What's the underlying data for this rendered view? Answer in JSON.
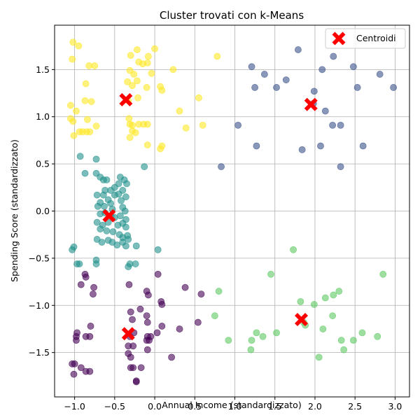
{
  "chart_data": {
    "type": "scatter",
    "title": "Cluster trovati con k-Means",
    "xlabel": "Annual Income (standardizzato)",
    "ylabel": "Spending Score (standardizzato)",
    "xlim": [
      -1.25,
      3.18
    ],
    "ylim": [
      -1.97,
      1.97
    ],
    "xticks": [
      -1.0,
      -0.5,
      0.0,
      0.5,
      1.0,
      1.5,
      2.0,
      2.5,
      3.0
    ],
    "yticks": [
      -1.5,
      -1.0,
      -0.5,
      0.0,
      0.5,
      1.0,
      1.5
    ],
    "xtick_labels": [
      "−1.0",
      "−0.5",
      "0.0",
      "0.5",
      "1.0",
      "1.5",
      "2.0",
      "2.5",
      "3.0"
    ],
    "ytick_labels": [
      "−1.5",
      "−1.0",
      "−0.5",
      "0.0",
      "0.5",
      "1.0",
      "1.5"
    ],
    "grid": true,
    "legend": {
      "position": "top-right",
      "label": "Centroidi"
    },
    "point_alpha": 0.6,
    "series": [
      {
        "color": "#fde725",
        "points": [
          [
            -1.02,
            1.79
          ],
          [
            -0.95,
            1.75
          ],
          [
            -1.03,
            1.61
          ],
          [
            -0.82,
            1.54
          ],
          [
            -0.75,
            1.54
          ],
          [
            -0.86,
            1.35
          ],
          [
            -0.79,
            1.16
          ],
          [
            -0.87,
            1.17
          ],
          [
            -1.05,
            1.12
          ],
          [
            -0.98,
            1.06
          ],
          [
            -1.05,
            0.98
          ],
          [
            -1.02,
            0.95
          ],
          [
            -0.84,
            0.97
          ],
          [
            -0.73,
            0.9
          ],
          [
            -0.9,
            0.84
          ],
          [
            -0.94,
            0.84
          ],
          [
            -0.85,
            0.84
          ],
          [
            -0.81,
            0.84
          ],
          [
            -1.01,
            0.8
          ],
          [
            -0.3,
            1.65
          ],
          [
            -0.22,
            1.71
          ],
          [
            -0.2,
            1.58
          ],
          [
            -0.08,
            1.64
          ],
          [
            -0.15,
            1.56
          ],
          [
            0.0,
            1.72
          ],
          [
            -0.09,
            1.57
          ],
          [
            -0.31,
            1.49
          ],
          [
            -0.26,
            1.45
          ],
          [
            -0.04,
            1.46
          ],
          [
            -0.34,
            1.37
          ],
          [
            -0.28,
            1.33
          ],
          [
            -0.22,
            1.38
          ],
          [
            -0.1,
            1.31
          ],
          [
            0.07,
            1.32
          ],
          [
            0.09,
            1.28
          ],
          [
            -0.21,
            1.2
          ],
          [
            -0.33,
            1.17
          ],
          [
            0.23,
            1.5
          ],
          [
            0.55,
            1.2
          ],
          [
            0.78,
            1.64
          ],
          [
            -0.32,
            0.98
          ],
          [
            -0.28,
            0.91
          ],
          [
            -0.31,
            0.92
          ],
          [
            -0.2,
            0.92
          ],
          [
            -0.14,
            0.92
          ],
          [
            -0.28,
            0.85
          ],
          [
            -0.31,
            0.78
          ],
          [
            -0.24,
            0.83
          ],
          [
            0.31,
            1.06
          ],
          [
            0.39,
            0.88
          ],
          [
            0.6,
            0.91
          ],
          [
            -0.09,
            0.7
          ],
          [
            0.07,
            0.66
          ],
          [
            0.09,
            0.69
          ],
          [
            -0.09,
            0.92
          ]
        ]
      },
      {
        "color": "#3b528b",
        "points": [
          [
            1.21,
            1.53
          ],
          [
            1.37,
            1.45
          ],
          [
            1.52,
            1.31
          ],
          [
            1.25,
            1.31
          ],
          [
            1.64,
            1.39
          ],
          [
            1.79,
            1.71
          ],
          [
            1.99,
            1.27
          ],
          [
            2.09,
            1.5
          ],
          [
            2.23,
            1.64
          ],
          [
            2.48,
            1.53
          ],
          [
            2.53,
            1.31
          ],
          [
            2.81,
            1.45
          ],
          [
            2.98,
            1.31
          ],
          [
            2.13,
            1.06
          ],
          [
            2.22,
            0.91
          ],
          [
            2.32,
            0.91
          ],
          [
            1.04,
            0.91
          ],
          [
            1.27,
            0.69
          ],
          [
            1.84,
            0.65
          ],
          [
            2.07,
            0.69
          ],
          [
            2.32,
            0.47
          ],
          [
            2.6,
            0.69
          ],
          [
            0.83,
            0.47
          ],
          [
            1.98,
            1.14
          ]
        ]
      },
      {
        "color": "#21918c",
        "points": [
          [
            -0.93,
            0.58
          ],
          [
            -0.73,
            0.55
          ],
          [
            -0.87,
            0.4
          ],
          [
            -0.73,
            0.4
          ],
          [
            -0.68,
            0.36
          ],
          [
            -0.64,
            0.33
          ],
          [
            -0.6,
            0.33
          ],
          [
            -0.43,
            0.36
          ],
          [
            -0.45,
            0.29
          ],
          [
            -0.38,
            0.33
          ],
          [
            -0.35,
            0.29
          ],
          [
            -0.13,
            0.47
          ],
          [
            -0.5,
            0.25
          ],
          [
            -0.55,
            0.22
          ],
          [
            -0.62,
            0.22
          ],
          [
            -0.64,
            0.17
          ],
          [
            -0.72,
            0.17
          ],
          [
            -0.68,
            0.09
          ],
          [
            -0.58,
            0.12
          ],
          [
            -0.5,
            0.17
          ],
          [
            -0.45,
            0.18
          ],
          [
            -0.4,
            0.22
          ],
          [
            -0.36,
            0.15
          ],
          [
            -0.42,
            0.11
          ],
          [
            -0.55,
            0.08
          ],
          [
            -0.63,
            0.05
          ],
          [
            -0.71,
            0.05
          ],
          [
            -0.53,
            0.02
          ],
          [
            -0.4,
            0.04
          ],
          [
            -0.37,
            0.0
          ],
          [
            -0.68,
            -0.03
          ],
          [
            -0.62,
            -0.02
          ],
          [
            -0.55,
            -0.05
          ],
          [
            -0.5,
            -0.07
          ],
          [
            -0.43,
            -0.05
          ],
          [
            -0.36,
            -0.09
          ],
          [
            -0.72,
            -0.12
          ],
          [
            -0.65,
            -0.15
          ],
          [
            -0.58,
            -0.12
          ],
          [
            -0.46,
            -0.15
          ],
          [
            -0.4,
            -0.13
          ],
          [
            -0.36,
            -0.17
          ],
          [
            -0.68,
            -0.19
          ],
          [
            -0.6,
            -0.21
          ],
          [
            -0.52,
            -0.22
          ],
          [
            -0.44,
            -0.25
          ],
          [
            -0.4,
            -0.28
          ],
          [
            -0.34,
            -0.26
          ],
          [
            -0.72,
            -0.3
          ],
          [
            -0.66,
            -0.33
          ],
          [
            -0.58,
            -0.31
          ],
          [
            -0.53,
            -0.33
          ],
          [
            -0.47,
            -0.36
          ],
          [
            -0.4,
            -0.33
          ],
          [
            -0.33,
            -0.3
          ],
          [
            -0.36,
            -0.37
          ],
          [
            -0.23,
            -0.37
          ],
          [
            -1.03,
            -0.41
          ],
          [
            -1.01,
            -0.38
          ],
          [
            -0.73,
            -0.52
          ],
          [
            -0.94,
            -0.56
          ],
          [
            -0.97,
            -0.56
          ],
          [
            -0.73,
            -0.56
          ],
          [
            -0.31,
            -0.56
          ],
          [
            -0.24,
            -0.56
          ],
          [
            -0.33,
            -0.59
          ],
          [
            0.04,
            -0.41
          ]
        ]
      },
      {
        "color": "#5ec962",
        "points": [
          [
            1.73,
            -0.41
          ],
          [
            1.45,
            -0.67
          ],
          [
            2.85,
            -0.67
          ],
          [
            0.8,
            -0.85
          ],
          [
            2.23,
            -0.89
          ],
          [
            2.3,
            -0.85
          ],
          [
            1.82,
            -0.96
          ],
          [
            1.99,
            -0.99
          ],
          [
            2.13,
            -0.92
          ],
          [
            0.75,
            -1.11
          ],
          [
            1.86,
            -1.18
          ],
          [
            1.88,
            -1.21
          ],
          [
            2.22,
            -1.11
          ],
          [
            1.27,
            -1.29
          ],
          [
            1.35,
            -1.33
          ],
          [
            1.52,
            -1.29
          ],
          [
            2.1,
            -1.25
          ],
          [
            2.33,
            -1.37
          ],
          [
            2.48,
            -1.37
          ],
          [
            2.59,
            -1.29
          ],
          [
            2.78,
            -1.33
          ],
          [
            0.92,
            -1.37
          ],
          [
            1.21,
            -1.37
          ],
          [
            1.2,
            -1.47
          ],
          [
            2.05,
            -1.55
          ],
          [
            2.36,
            -1.47
          ]
        ]
      },
      {
        "color": "#440154",
        "points": [
          [
            -0.92,
            -0.78
          ],
          [
            -0.87,
            -0.67
          ],
          [
            -0.86,
            -0.7
          ],
          [
            -0.76,
            -0.81
          ],
          [
            -0.77,
            -0.88
          ],
          [
            -0.32,
            -0.78
          ],
          [
            -0.08,
            -0.89
          ],
          [
            -0.1,
            -0.85
          ],
          [
            0.04,
            -0.67
          ],
          [
            0.08,
            -0.96
          ],
          [
            0.09,
            -0.99
          ],
          [
            0.38,
            -0.81
          ],
          [
            0.58,
            -0.88
          ],
          [
            -0.3,
            -1.07
          ],
          [
            -0.28,
            -1.15
          ],
          [
            -0.18,
            -1.04
          ],
          [
            -0.1,
            -1.11
          ],
          [
            -0.09,
            -1.18
          ],
          [
            0.09,
            -1.22
          ],
          [
            0.31,
            -1.25
          ],
          [
            0.54,
            -1.18
          ],
          [
            -0.8,
            -1.22
          ],
          [
            -0.86,
            -1.33
          ],
          [
            -0.81,
            -1.33
          ],
          [
            -0.97,
            -1.29
          ],
          [
            -0.98,
            -1.33
          ],
          [
            -0.98,
            -1.37
          ],
          [
            -0.31,
            -1.33
          ],
          [
            -0.26,
            -1.29
          ],
          [
            -0.33,
            -1.43
          ],
          [
            -0.09,
            -1.33
          ],
          [
            -0.07,
            -1.37
          ],
          [
            -0.05,
            -1.33
          ],
          [
            0.03,
            -1.29
          ],
          [
            -0.1,
            -1.37
          ],
          [
            -0.09,
            -1.47
          ],
          [
            0.21,
            -1.55
          ],
          [
            -0.33,
            -1.51
          ],
          [
            -0.27,
            -1.43
          ],
          [
            -0.3,
            -1.55
          ],
          [
            -0.3,
            -1.66
          ],
          [
            -0.27,
            -1.66
          ],
          [
            -0.17,
            -1.66
          ],
          [
            -0.23,
            -1.8
          ],
          [
            -0.23,
            -1.81
          ],
          [
            -1.03,
            -1.62
          ],
          [
            -1.0,
            -1.62
          ],
          [
            -0.92,
            -1.66
          ],
          [
            -0.86,
            -1.7
          ],
          [
            -0.81,
            -1.7
          ],
          [
            -1.01,
            -1.73
          ]
        ]
      }
    ],
    "centroids": [
      {
        "x": -0.57,
        "y": -0.05
      },
      {
        "x": 1.95,
        "y": 1.13
      },
      {
        "x": -0.36,
        "y": 1.18
      },
      {
        "x": -0.33,
        "y": -1.3
      },
      {
        "x": 1.83,
        "y": -1.15
      }
    ],
    "centroid_color": "#ff0000"
  }
}
